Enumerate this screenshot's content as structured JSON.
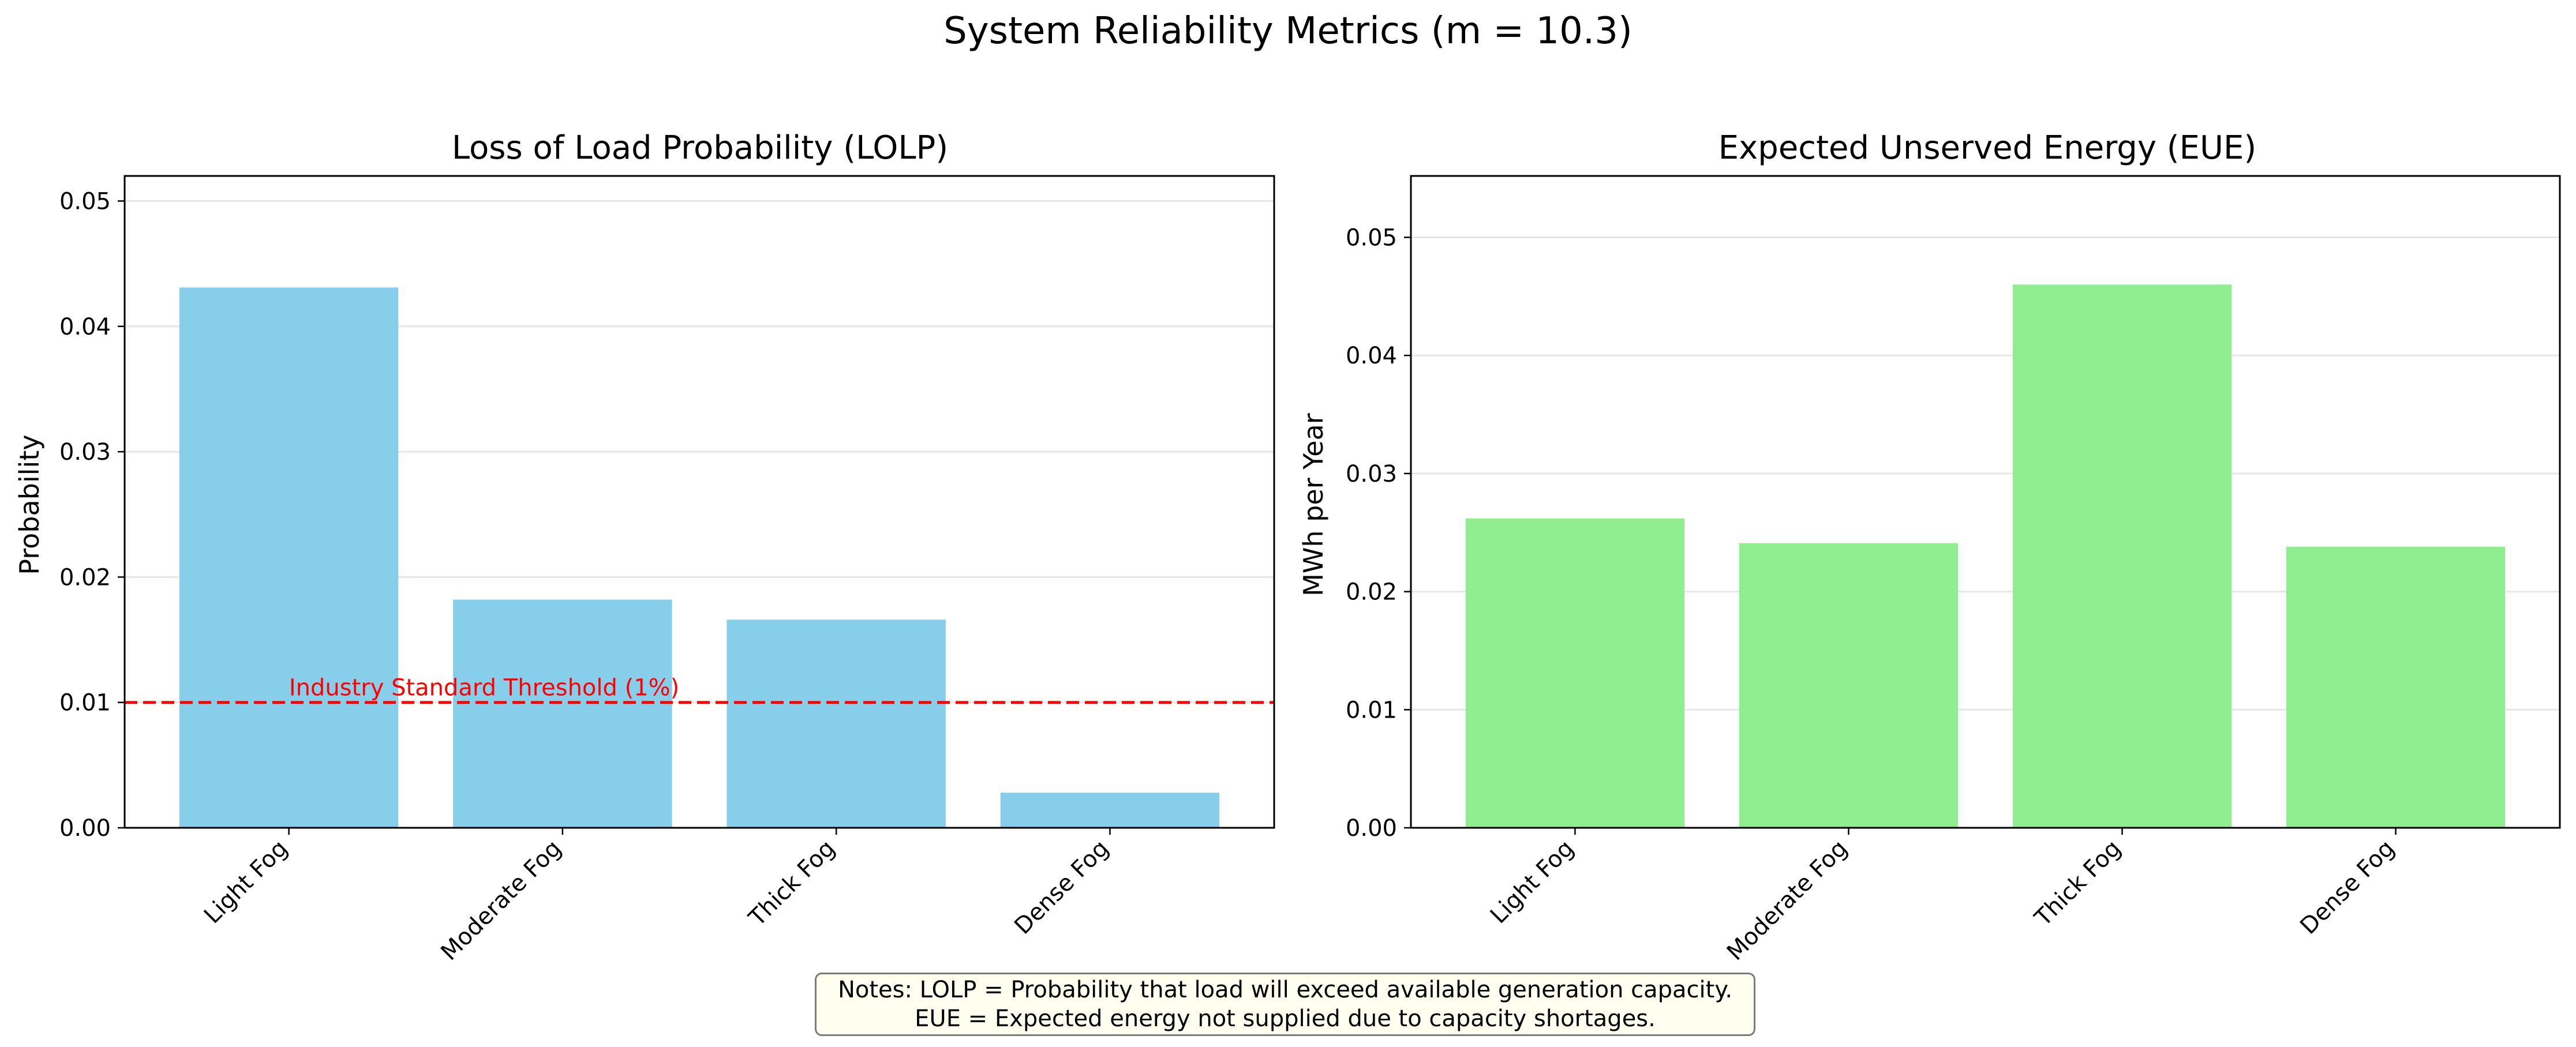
{
  "figure_title": "System Reliability Metrics (m = 10.3)",
  "chart_data": [
    {
      "type": "bar",
      "title": "Loss of Load Probability (LOLP)",
      "xlabel": "",
      "ylabel": "Probability",
      "categories": [
        "Light Fog",
        "Moderate Fog",
        "Thick Fog",
        "Dense Fog"
      ],
      "values": [
        0.0431,
        0.0182,
        0.0166,
        0.0028
      ],
      "ylim": [
        0,
        0.052
      ],
      "yticks": [
        "0.00",
        "0.01",
        "0.02",
        "0.03",
        "0.04",
        "0.05"
      ],
      "color": "#87ceeb",
      "grid": "y",
      "reference_line": {
        "value": 0.01,
        "label": "Industry Standard Threshold (1%)",
        "color": "#ff0000",
        "style": "dashed"
      }
    },
    {
      "type": "bar",
      "title": "Expected Unserved Energy (EUE)",
      "xlabel": "",
      "ylabel": "MWh per Year",
      "categories": [
        "Light Fog",
        "Moderate Fog",
        "Thick Fog",
        "Dense Fog"
      ],
      "values": [
        0.0262,
        0.0241,
        0.046,
        0.0238
      ],
      "ylim": [
        0,
        0.0552
      ],
      "yticks": [
        "0.00",
        "0.01",
        "0.02",
        "0.03",
        "0.04",
        "0.05"
      ],
      "color": "#90ee90",
      "grid": "y"
    }
  ],
  "notes": {
    "line1": "Notes: LOLP = Probability that load will exceed available generation capacity.",
    "line2": "EUE = Expected energy not supplied due to capacity shortages."
  }
}
